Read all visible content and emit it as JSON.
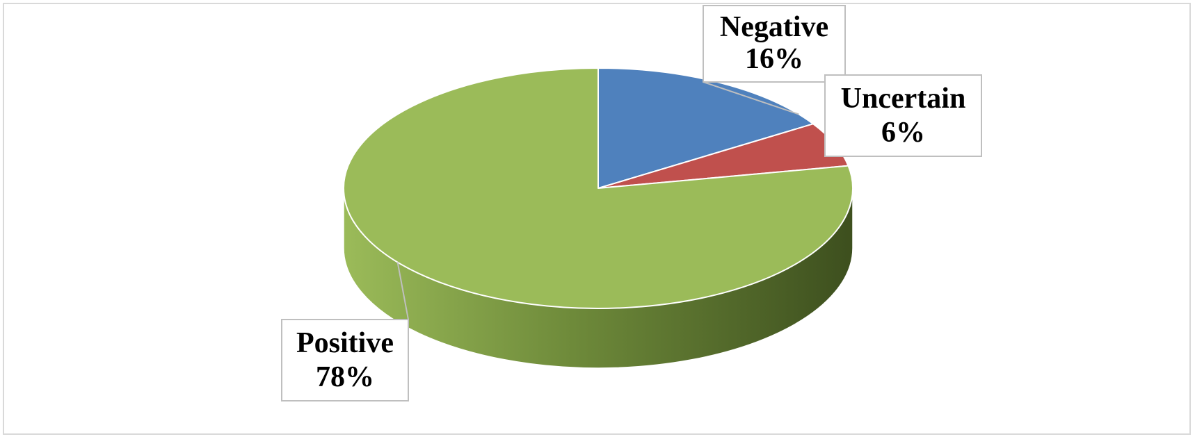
{
  "chart_data": {
    "type": "pie",
    "title": "",
    "categories": [
      "Negative",
      "Uncertain",
      "Positive"
    ],
    "values": [
      16,
      6,
      78
    ],
    "unit": "%",
    "legend": "none",
    "style": "3d",
    "colors": {
      "Negative": "#4f81bd",
      "Uncertain": "#c0504d",
      "Positive": "#9bbb59",
      "Positive_side": "#4a5f23",
      "label_border": "#bfbfbf",
      "frame_border": "#d9d9d9"
    },
    "data_labels": [
      {
        "category": "Negative",
        "value_text": "16%"
      },
      {
        "category": "Uncertain",
        "value_text": "6%"
      },
      {
        "category": "Positive",
        "value_text": "78%"
      }
    ]
  }
}
